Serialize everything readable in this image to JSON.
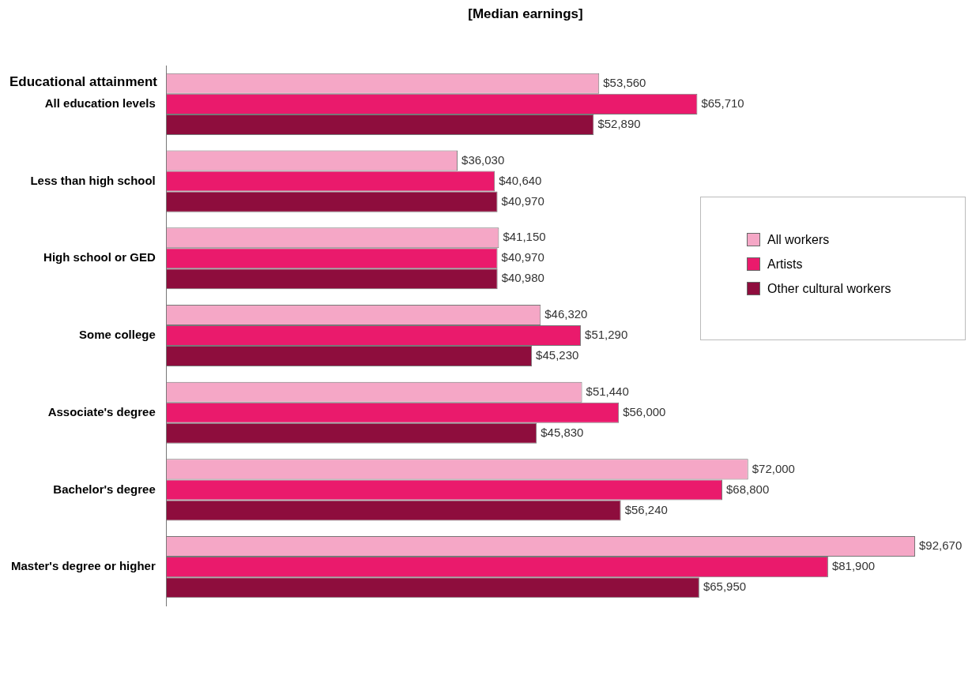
{
  "chart_data": {
    "type": "bar",
    "orientation": "horizontal",
    "title": "[Median earnings]",
    "ylabel": "Educational attainment",
    "categories": [
      "All education levels",
      "Less than high school",
      "High school or GED",
      "Some college",
      "Associate's degree",
      "Bachelor's degree",
      "Master's degree or higher"
    ],
    "series": [
      {
        "name": "All workers",
        "color": "#f5a7c6",
        "values": [
          53560,
          36030,
          41150,
          46320,
          51440,
          72000,
          92670
        ],
        "value_labels": [
          "$53,560",
          "$36,030",
          "$41,150",
          "$46,320",
          "$51,440",
          "$72,000",
          "$92,670"
        ]
      },
      {
        "name": "Artists",
        "color": "#ea1a6c",
        "values": [
          65710,
          40640,
          40970,
          51290,
          56000,
          68800,
          81900
        ],
        "value_labels": [
          "$65,710",
          "$40,640",
          "$40,970",
          "$51,290",
          "$56,000",
          "$68,800",
          "$81,900"
        ]
      },
      {
        "name": "Other cultural workers",
        "color": "#8e0d3d",
        "values": [
          52890,
          40970,
          40980,
          45230,
          45830,
          56240,
          65950
        ],
        "value_labels": [
          "$52,890",
          "$40,970",
          "$40,980",
          "$45,230",
          "$45,830",
          "$56,240",
          "$65,950"
        ]
      }
    ],
    "tick_labels": "y",
    "legend": "right"
  }
}
